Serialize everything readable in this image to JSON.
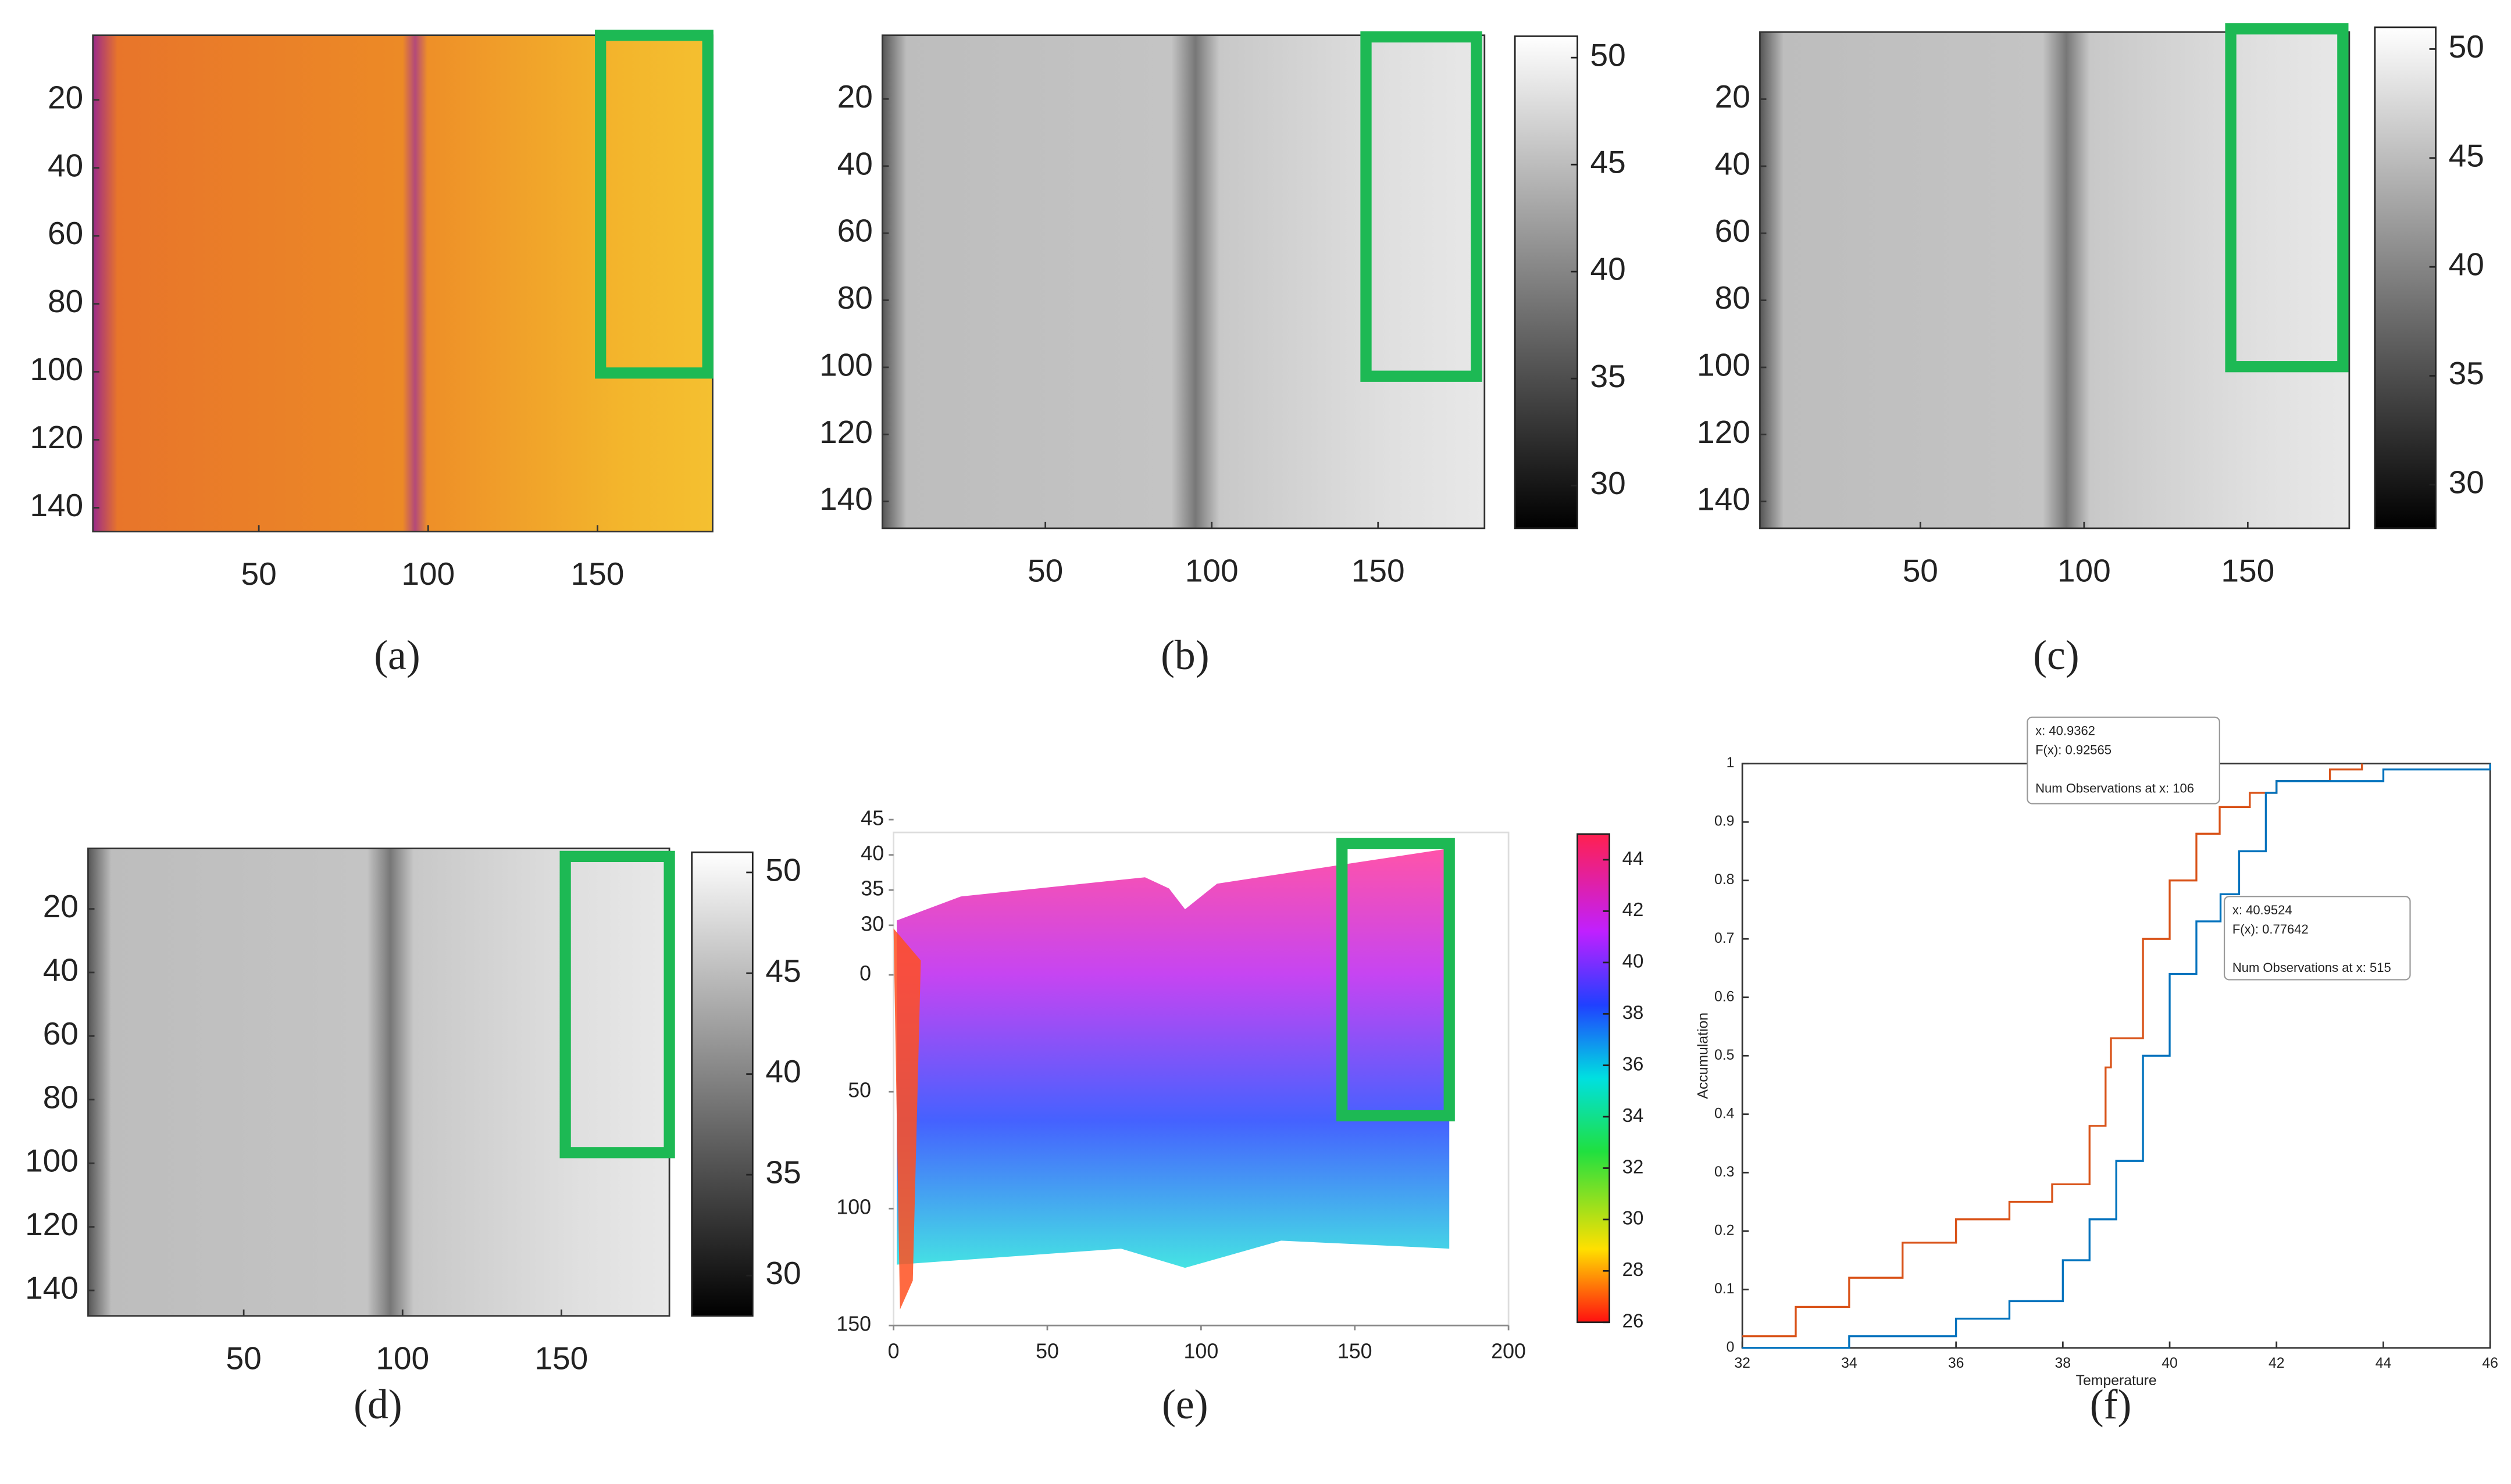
{
  "chart_data": [
    {
      "type": "heatmap",
      "label": "(a)",
      "colormap": "inferno",
      "xlim": [
        1,
        184
      ],
      "ylim": [
        1,
        147
      ],
      "y_reversed": true,
      "xticks": [
        50,
        100,
        150
      ],
      "yticks": [
        20,
        40,
        60,
        80,
        100,
        120,
        140
      ]
    },
    {
      "type": "heatmap",
      "label": "(b)",
      "colormap": "gray",
      "xlim": [
        1,
        182
      ],
      "ylim": [
        1,
        148
      ],
      "y_reversed": true,
      "xticks": [
        50,
        100,
        150
      ],
      "yticks": [
        20,
        40,
        60,
        80,
        100,
        120,
        140
      ],
      "clim": [
        28,
        51
      ],
      "cticks": [
        30,
        35,
        40,
        45,
        50
      ]
    },
    {
      "type": "heatmap",
      "label": "(c)",
      "colormap": "gray",
      "xlim": [
        1,
        181
      ],
      "ylim": [
        0,
        148
      ],
      "y_reversed": true,
      "xticks": [
        50,
        100,
        150
      ],
      "yticks": [
        20,
        40,
        60,
        80,
        100,
        120,
        140
      ],
      "clim": [
        28,
        51
      ],
      "cticks": [
        30,
        35,
        40,
        45,
        50
      ]
    },
    {
      "type": "heatmap",
      "label": "(d)",
      "colormap": "gray",
      "xlim": [
        1,
        184
      ],
      "ylim": [
        1,
        148
      ],
      "y_reversed": true,
      "xticks": [
        50,
        100,
        150
      ],
      "yticks": [
        20,
        40,
        60,
        80,
        100,
        120,
        140
      ],
      "clim": [
        28,
        51
      ],
      "cticks": [
        30,
        35,
        40,
        45,
        50
      ]
    },
    {
      "type": "surface",
      "label": "(e)",
      "colormap": "hsv",
      "xlim": [
        0,
        200
      ],
      "xticks": [
        0,
        50,
        100,
        150,
        200
      ],
      "ylim": [
        0,
        150
      ],
      "yticks": [
        0,
        50,
        100,
        150
      ],
      "zlim": [
        30,
        45
      ],
      "zticks": [
        30,
        35,
        40,
        45
      ],
      "clim": [
        26,
        45
      ],
      "cticks": [
        26,
        28,
        30,
        32,
        34,
        36,
        38,
        40,
        42,
        44
      ]
    },
    {
      "type": "line",
      "label": "(f)",
      "xlabel": "Temperature",
      "ylabel": "Accumulation",
      "xlim": [
        32,
        46
      ],
      "xticks": [
        32,
        34,
        36,
        38,
        40,
        42,
        44,
        46
      ],
      "ylim": [
        0,
        1
      ],
      "yticks": [
        0,
        0.1,
        0.2,
        0.3,
        0.4,
        0.5,
        0.6,
        0.7,
        0.8,
        0.9,
        1
      ],
      "series": [
        {
          "color": "#d95319",
          "x": [
            32,
            33,
            34,
            35,
            36,
            37,
            37.8,
            38.5,
            38.8,
            38.9,
            39.5,
            40,
            40.5,
            40.9362,
            41.5,
            42,
            43,
            43.6
          ],
          "values": [
            0.02,
            0.07,
            0.12,
            0.18,
            0.22,
            0.25,
            0.28,
            0.38,
            0.48,
            0.53,
            0.7,
            0.8,
            0.88,
            0.92565,
            0.95,
            0.97,
            0.99,
            1
          ]
        },
        {
          "color": "#0072bd",
          "x": [
            32,
            34,
            36,
            37,
            38,
            38.5,
            39,
            39.5,
            40,
            40.5,
            40.9524,
            41.3,
            41.8,
            42,
            44,
            46
          ],
          "values": [
            0,
            0.02,
            0.05,
            0.08,
            0.15,
            0.22,
            0.32,
            0.5,
            0.64,
            0.73,
            0.77642,
            0.85,
            0.95,
            0.97,
            0.99,
            1
          ]
        }
      ],
      "datatips": [
        {
          "lines": [
            "x: 40.9362",
            "F(x): 0.92565",
            "",
            "Num Observations at x: 106"
          ]
        },
        {
          "lines": [
            "x: 40.9524",
            "F(x): 0.77642",
            "",
            "Num Observations at x: 515"
          ]
        }
      ]
    }
  ]
}
